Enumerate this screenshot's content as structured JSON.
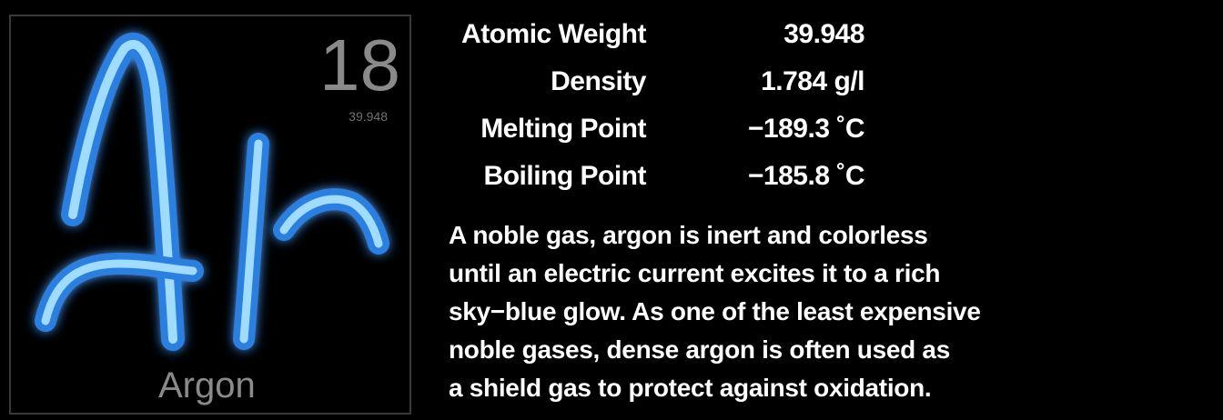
{
  "element": {
    "symbol": "Ar",
    "number": "18",
    "weight_small": "39.948",
    "name": "Argon",
    "glow_color": "#5fb8ff"
  },
  "properties": [
    {
      "label": "Atomic Weight",
      "value": "39.948"
    },
    {
      "label": "Density",
      "value": "1.784 g/l"
    },
    {
      "label": "Melting Point",
      "value": "−189.3 ˚C"
    },
    {
      "label": "Boiling Point",
      "value": "−185.8 ˚C"
    }
  ],
  "description_lines": [
    "A noble gas, argon is inert and colorless",
    "until an electric current excites it to a rich",
    "sky−blue glow.  As one of the least expensive",
    "noble gases, dense argon is often used as",
    "a shield gas to protect against oxidation."
  ]
}
